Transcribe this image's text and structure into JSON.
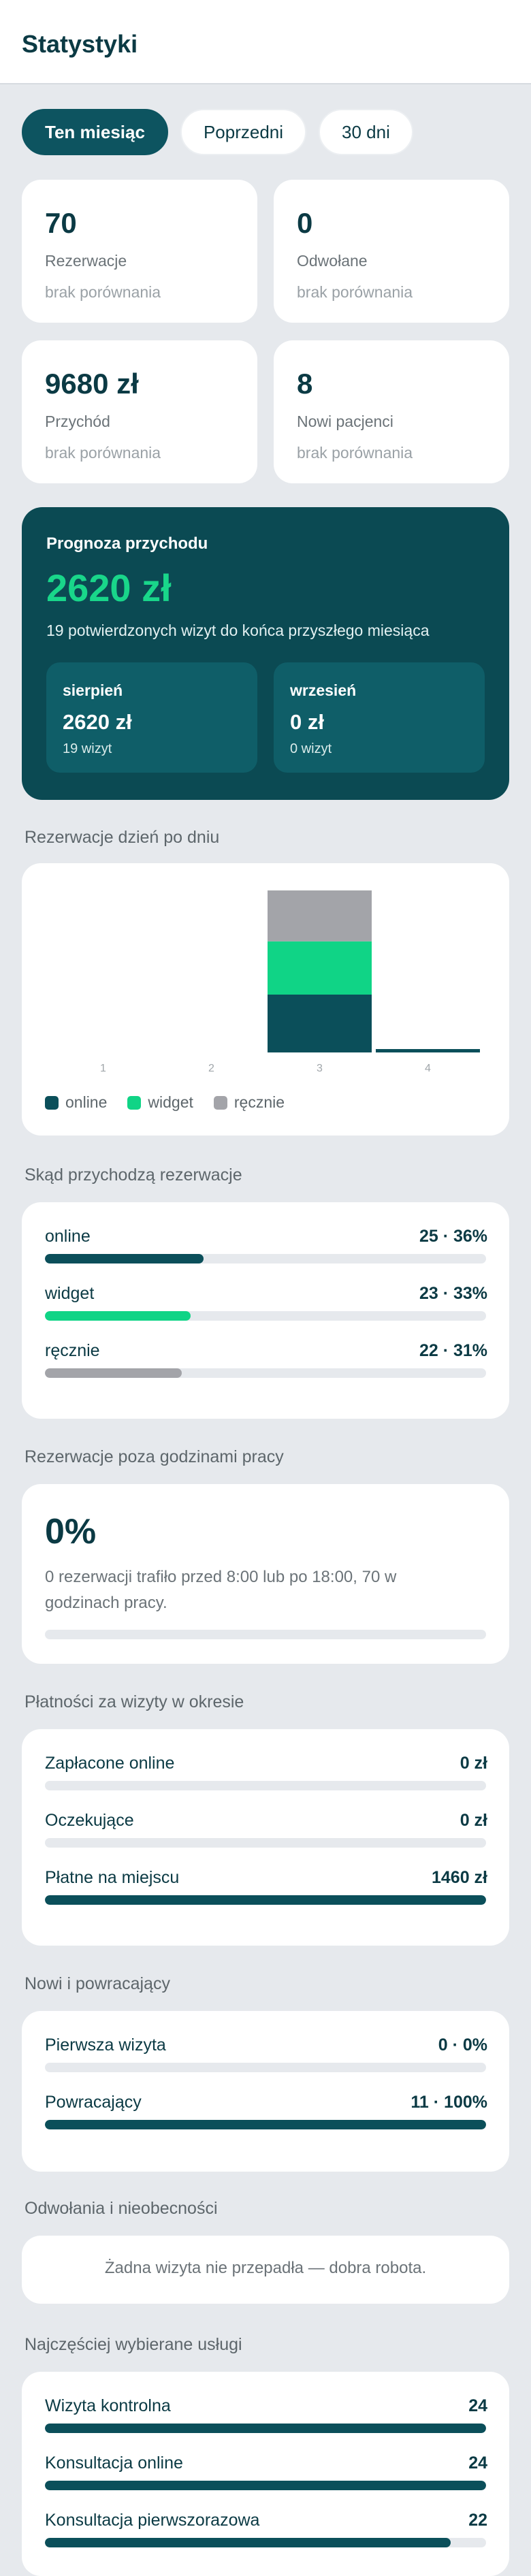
{
  "header": {
    "title": "Statystyki"
  },
  "tabs": [
    {
      "label": "Ten miesiąc",
      "active": true
    },
    {
      "label": "Poprzedni",
      "active": false
    },
    {
      "label": "30 dni",
      "active": false
    }
  ],
  "stats": [
    {
      "value": "70",
      "label": "Rezerwacje",
      "compare": "brak porównania"
    },
    {
      "value": "0",
      "label": "Odwołane",
      "compare": "brak porównania"
    },
    {
      "value": "9680 zł",
      "label": "Przychód",
      "compare": "brak porównania"
    },
    {
      "value": "8",
      "label": "Nowi pacjenci",
      "compare": "brak porównania"
    }
  ],
  "forecast": {
    "title": "Prognoza przychodu",
    "value": "2620 zł",
    "subtitle": "19 potwierdzonych wizyt do końca przyszłego miesiąca",
    "months": [
      {
        "name": "sierpień",
        "amount": "2620 zł",
        "visits": "19 wizyt"
      },
      {
        "name": "wrzesień",
        "amount": "0 zł",
        "visits": "0 wizyt"
      }
    ]
  },
  "daily": {
    "title": "Rezerwacje dzień po dniu",
    "legend": [
      {
        "label": "online",
        "color": "#0b4f5a"
      },
      {
        "label": "widget",
        "color": "#10d486"
      },
      {
        "label": "ręcznie",
        "color": "#a3a4a9"
      }
    ]
  },
  "chart_data": {
    "type": "bar",
    "stacked": true,
    "categories": [
      "1",
      "2",
      "3",
      "4"
    ],
    "series": [
      {
        "name": "online",
        "values": [
          0,
          0,
          25,
          0.3
        ]
      },
      {
        "name": "widget",
        "values": [
          0,
          0,
          23,
          0
        ]
      },
      {
        "name": "ręcznie",
        "values": [
          0,
          0,
          22,
          0
        ]
      }
    ],
    "grid": false,
    "legend": "bottom-left",
    "colors": [
      "#0b4f5a",
      "#10d486",
      "#a3a4a9"
    ]
  },
  "sources": {
    "title": "Skąd przychodzą rezerwacje",
    "rows": [
      {
        "label": "online",
        "value": "25 · 36%",
        "pct": 36,
        "color": "#0b4f5a"
      },
      {
        "label": "widget",
        "value": "23 · 33%",
        "pct": 33,
        "color": "#10d486"
      },
      {
        "label": "ręcznie",
        "value": "22 · 31%",
        "pct": 31,
        "color": "#a3a4a9"
      }
    ]
  },
  "offhours": {
    "title": "Rezerwacje poza godzinami pracy",
    "value": "0%",
    "text": "0 rezerwacji trafiło przed 8:00 lub po 18:00, 70 w godzinach pracy.",
    "pct": 0
  },
  "payments": {
    "title": "Płatności za wizyty w okresie",
    "rows": [
      {
        "label": "Zapłacone online",
        "value": "0 zł",
        "pct": 0
      },
      {
        "label": "Oczekujące",
        "value": "0 zł",
        "pct": 0
      },
      {
        "label": "Płatne na miejscu",
        "value": "1460 zł",
        "pct": 100
      }
    ]
  },
  "returning": {
    "title": "Nowi i powracający",
    "rows": [
      {
        "label": "Pierwsza wizyta",
        "value": "0 · 0%",
        "pct": 0
      },
      {
        "label": "Powracający",
        "value": "11 · 100%",
        "pct": 100
      }
    ]
  },
  "noshow": {
    "title": "Odwołania i nieobecności",
    "text": "Żadna wizyta nie przepadła — dobra robota."
  },
  "services": {
    "title": "Najczęściej wybierane usługi",
    "rows": [
      {
        "label": "Wizyta kontrolna",
        "value": "24",
        "pct": 100
      },
      {
        "label": "Konsultacja online",
        "value": "24",
        "pct": 100
      },
      {
        "label": "Konsultacja pierwszorazowa",
        "value": "22",
        "pct": 92
      }
    ]
  }
}
